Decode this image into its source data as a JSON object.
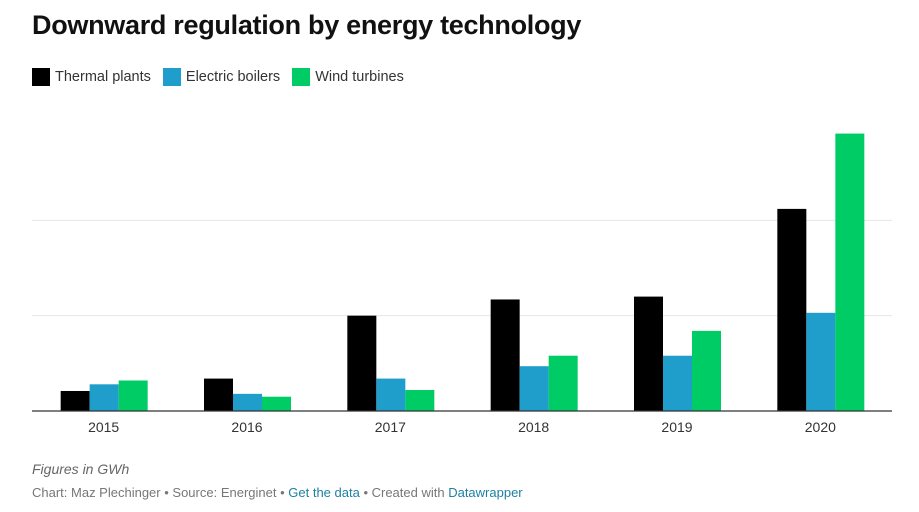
{
  "title": "Downward regulation by energy technology",
  "notes": "Figures in GWh",
  "footer": {
    "chart_by": "Chart: Maz Plechinger",
    "sep1": " • ",
    "source": "Source: Energinet",
    "sep2": " • ",
    "get_data": "Get the data",
    "sep3": " • ",
    "created_with": "Created with ",
    "datawrapper": "Datawrapper"
  },
  "colors": {
    "thermal": "#000000",
    "boilers": "#1f9ecc",
    "wind": "#00cc66",
    "gridline": "#e6e6e6",
    "baseline": "#333333"
  },
  "chart_data": {
    "type": "bar",
    "title": "Downward regulation by energy technology",
    "categories": [
      "2015",
      "2016",
      "2017",
      "2018",
      "2019",
      "2020"
    ],
    "series": [
      {
        "name": "Thermal plants",
        "color": "#000000",
        "values": [
          21,
          34,
          100,
          117,
          120,
          212
        ]
      },
      {
        "name": "Electric boilers",
        "color": "#1f9ecc",
        "values": [
          28,
          18,
          34,
          47,
          58,
          103
        ]
      },
      {
        "name": "Wind turbines",
        "color": "#00cc66",
        "values": [
          32,
          15,
          22,
          58,
          84,
          291
        ]
      }
    ],
    "ylim": [
      0,
      300
    ],
    "y_gridlines": [
      100,
      200
    ],
    "y_tick_labels_shown": false,
    "grid": true,
    "legend_position": "top-left",
    "xlabel": "",
    "ylabel": ""
  }
}
